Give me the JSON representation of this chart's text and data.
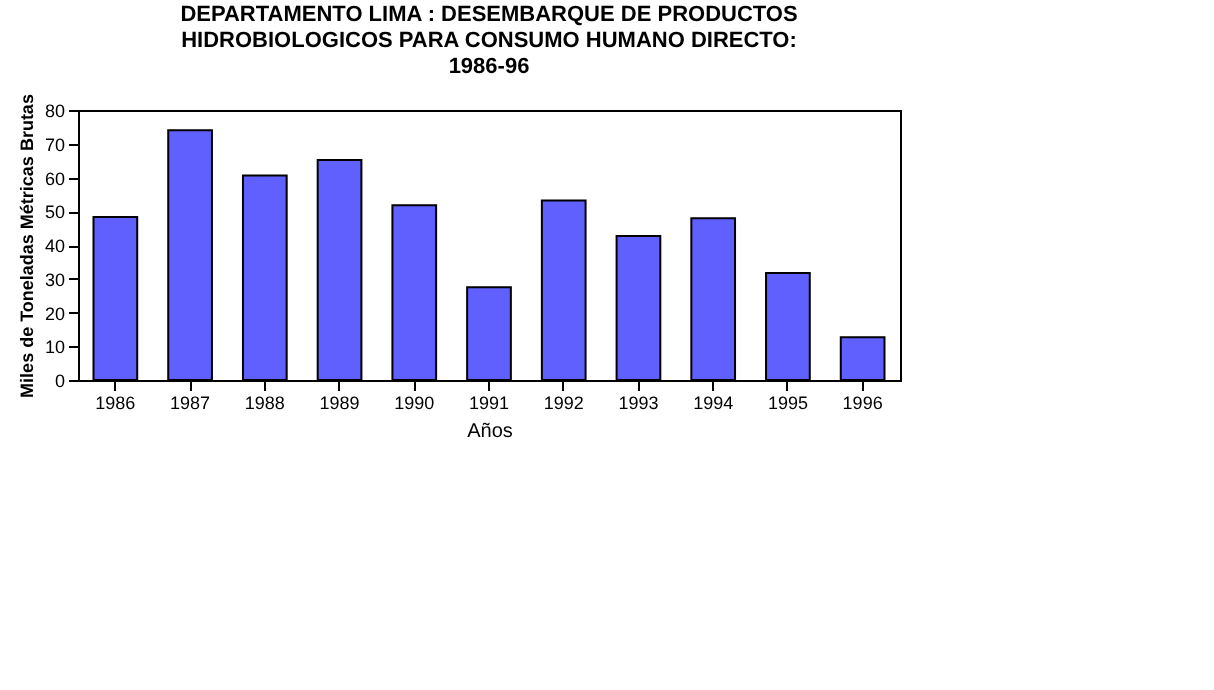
{
  "chart_data": {
    "type": "bar",
    "title": [
      "DEPARTAMENTO LIMA : DESEMBARQUE DE PRODUCTOS",
      "HIDROBIOLOGICOS PARA CONSUMO HUMANO DIRECTO:",
      "1986-96"
    ],
    "xlabel": "Años",
    "ylabel": "Miles de Toneladas Métricas Brutas",
    "categories": [
      "1986",
      "1987",
      "1988",
      "1989",
      "1990",
      "1991",
      "1992",
      "1993",
      "1994",
      "1995",
      "1996"
    ],
    "values": [
      48.3,
      74.0,
      60.6,
      65.2,
      51.8,
      27.5,
      53.2,
      42.7,
      47.9,
      31.7,
      12.7
    ],
    "color": "#6060ff",
    "ylim": [
      0,
      80
    ],
    "yticks": [
      0,
      10,
      20,
      30,
      40,
      50,
      60,
      70,
      80
    ],
    "grid": false
  }
}
